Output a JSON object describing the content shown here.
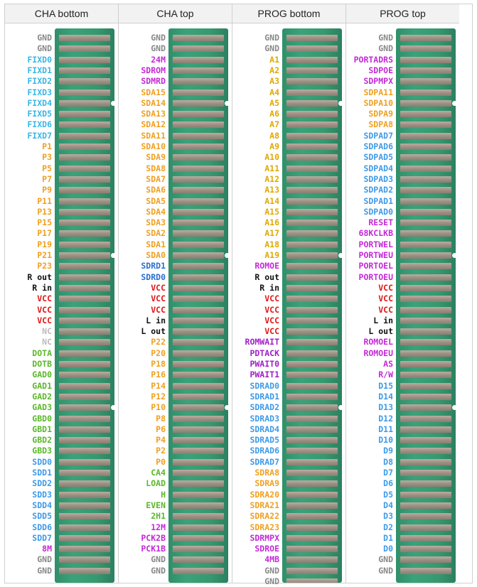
{
  "columns": [
    {
      "title": "CHA bottom",
      "pins": [
        {
          "name": "GND",
          "color": "#888888"
        },
        {
          "name": "GND",
          "color": "#888888"
        },
        {
          "name": "FIXD0",
          "color": "#39b6e6"
        },
        {
          "name": "FIXD1",
          "color": "#39b6e6"
        },
        {
          "name": "FIXD2",
          "color": "#39b6e6"
        },
        {
          "name": "FIXD3",
          "color": "#39b6e6"
        },
        {
          "name": "FIXD4",
          "color": "#39b6e6"
        },
        {
          "name": "FIXD5",
          "color": "#39b6e6"
        },
        {
          "name": "FIXD6",
          "color": "#39b6e6"
        },
        {
          "name": "FIXD7",
          "color": "#39b6e6"
        },
        {
          "name": "P1",
          "color": "#f0a020"
        },
        {
          "name": "P3",
          "color": "#f0a020"
        },
        {
          "name": "P5",
          "color": "#f0a020"
        },
        {
          "name": "P7",
          "color": "#f0a020"
        },
        {
          "name": "P9",
          "color": "#f0a020"
        },
        {
          "name": "P11",
          "color": "#f0a020"
        },
        {
          "name": "P13",
          "color": "#f0a020"
        },
        {
          "name": "P15",
          "color": "#f0a020"
        },
        {
          "name": "P17",
          "color": "#f0a020"
        },
        {
          "name": "P19",
          "color": "#f0a020"
        },
        {
          "name": "P21",
          "color": "#f0a020"
        },
        {
          "name": "P23",
          "color": "#f0a020"
        },
        {
          "name": "R out",
          "color": "#111111"
        },
        {
          "name": "R in",
          "color": "#111111"
        },
        {
          "name": "VCC",
          "color": "#e01818"
        },
        {
          "name": "VCC",
          "color": "#e01818"
        },
        {
          "name": "VCC",
          "color": "#e01818"
        },
        {
          "name": "NC",
          "color": "#bbbbbb"
        },
        {
          "name": "NC",
          "color": "#bbbbbb"
        },
        {
          "name": "DOTA",
          "color": "#5ab82a"
        },
        {
          "name": "DOTB",
          "color": "#5ab82a"
        },
        {
          "name": "GAD0",
          "color": "#5ab82a"
        },
        {
          "name": "GAD1",
          "color": "#5ab82a"
        },
        {
          "name": "GAD2",
          "color": "#5ab82a"
        },
        {
          "name": "GAD3",
          "color": "#5ab82a"
        },
        {
          "name": "GBD0",
          "color": "#5ab82a"
        },
        {
          "name": "GBD1",
          "color": "#5ab82a"
        },
        {
          "name": "GBD2",
          "color": "#5ab82a"
        },
        {
          "name": "GBD3",
          "color": "#5ab82a"
        },
        {
          "name": "SDD0",
          "color": "#3e9ae8"
        },
        {
          "name": "SDD1",
          "color": "#3e9ae8"
        },
        {
          "name": "SDD2",
          "color": "#3e9ae8"
        },
        {
          "name": "SDD3",
          "color": "#3e9ae8"
        },
        {
          "name": "SDD4",
          "color": "#3e9ae8"
        },
        {
          "name": "SDD5",
          "color": "#3e9ae8"
        },
        {
          "name": "SDD6",
          "color": "#3e9ae8"
        },
        {
          "name": "SDD7",
          "color": "#3e9ae8"
        },
        {
          "name": "8M",
          "color": "#c428d8"
        },
        {
          "name": "GND",
          "color": "#888888"
        },
        {
          "name": "GND",
          "color": "#888888"
        }
      ]
    },
    {
      "title": "CHA top",
      "pins": [
        {
          "name": "GND",
          "color": "#888888"
        },
        {
          "name": "GND",
          "color": "#888888"
        },
        {
          "name": "24M",
          "color": "#c428d8"
        },
        {
          "name": "SDROM",
          "color": "#c428d8"
        },
        {
          "name": "SDMRD",
          "color": "#c428d8"
        },
        {
          "name": "SDA15",
          "color": "#f0a020"
        },
        {
          "name": "SDA14",
          "color": "#f0a020"
        },
        {
          "name": "SDA13",
          "color": "#f0a020"
        },
        {
          "name": "SDA12",
          "color": "#f0a020"
        },
        {
          "name": "SDA11",
          "color": "#f0a020"
        },
        {
          "name": "SDA10",
          "color": "#f0a020"
        },
        {
          "name": "SDA9",
          "color": "#f0a020"
        },
        {
          "name": "SDA8",
          "color": "#f0a020"
        },
        {
          "name": "SDA7",
          "color": "#f0a020"
        },
        {
          "name": "SDA6",
          "color": "#f0a020"
        },
        {
          "name": "SDA5",
          "color": "#f0a020"
        },
        {
          "name": "SDA4",
          "color": "#f0a020"
        },
        {
          "name": "SDA3",
          "color": "#f0a020"
        },
        {
          "name": "SDA2",
          "color": "#f0a020"
        },
        {
          "name": "SDA1",
          "color": "#f0a020"
        },
        {
          "name": "SDA0",
          "color": "#f0a020"
        },
        {
          "name": "SDRD1",
          "color": "#2a6fd0"
        },
        {
          "name": "SDRD0",
          "color": "#2a6fd0"
        },
        {
          "name": "VCC",
          "color": "#e01818"
        },
        {
          "name": "VCC",
          "color": "#e01818"
        },
        {
          "name": "VCC",
          "color": "#e01818"
        },
        {
          "name": "L in",
          "color": "#111111"
        },
        {
          "name": "L out",
          "color": "#111111"
        },
        {
          "name": "P22",
          "color": "#f0a020"
        },
        {
          "name": "P20",
          "color": "#f0a020"
        },
        {
          "name": "P18",
          "color": "#f0a020"
        },
        {
          "name": "P16",
          "color": "#f0a020"
        },
        {
          "name": "P14",
          "color": "#f0a020"
        },
        {
          "name": "P12",
          "color": "#f0a020"
        },
        {
          "name": "P10",
          "color": "#f0a020"
        },
        {
          "name": "P8",
          "color": "#f0a020"
        },
        {
          "name": "P6",
          "color": "#f0a020"
        },
        {
          "name": "P4",
          "color": "#f0a020"
        },
        {
          "name": "P2",
          "color": "#f0a020"
        },
        {
          "name": "P0",
          "color": "#f0a020"
        },
        {
          "name": "CA4",
          "color": "#5ab82a"
        },
        {
          "name": "LOAD",
          "color": "#5ab82a"
        },
        {
          "name": "H",
          "color": "#5ab82a"
        },
        {
          "name": "EVEN",
          "color": "#5ab82a"
        },
        {
          "name": "2H1",
          "color": "#5ab82a"
        },
        {
          "name": "12M",
          "color": "#c428d8"
        },
        {
          "name": "PCK2B",
          "color": "#c428d8"
        },
        {
          "name": "PCK1B",
          "color": "#c428d8"
        },
        {
          "name": "GND",
          "color": "#888888"
        },
        {
          "name": "GND",
          "color": "#888888"
        }
      ]
    },
    {
      "title": "PROG bottom",
      "pins": [
        {
          "name": "GND",
          "color": "#888888"
        },
        {
          "name": "GND",
          "color": "#888888"
        },
        {
          "name": "A1",
          "color": "#e0a800"
        },
        {
          "name": "A2",
          "color": "#e0a800"
        },
        {
          "name": "A3",
          "color": "#e0a800"
        },
        {
          "name": "A4",
          "color": "#e0a800"
        },
        {
          "name": "A5",
          "color": "#e0a800"
        },
        {
          "name": "A6",
          "color": "#e0a800"
        },
        {
          "name": "A7",
          "color": "#e0a800"
        },
        {
          "name": "A8",
          "color": "#e0a800"
        },
        {
          "name": "A9",
          "color": "#e0a800"
        },
        {
          "name": "A10",
          "color": "#e0a800"
        },
        {
          "name": "A11",
          "color": "#e0a800"
        },
        {
          "name": "A12",
          "color": "#e0a800"
        },
        {
          "name": "A13",
          "color": "#e0a800"
        },
        {
          "name": "A14",
          "color": "#e0a800"
        },
        {
          "name": "A15",
          "color": "#e0a800"
        },
        {
          "name": "A16",
          "color": "#e0a800"
        },
        {
          "name": "A17",
          "color": "#e0a800"
        },
        {
          "name": "A18",
          "color": "#e0a800"
        },
        {
          "name": "A19",
          "color": "#e0a800"
        },
        {
          "name": "ROMOE",
          "color": "#c428d8"
        },
        {
          "name": "R out",
          "color": "#111111"
        },
        {
          "name": "R in",
          "color": "#111111"
        },
        {
          "name": "VCC",
          "color": "#e01818"
        },
        {
          "name": "VCC",
          "color": "#e01818"
        },
        {
          "name": "VCC",
          "color": "#e01818"
        },
        {
          "name": "VCC",
          "color": "#e01818"
        },
        {
          "name": "ROMWAIT",
          "color": "#a01ec8"
        },
        {
          "name": "PDTACK",
          "color": "#a01ec8"
        },
        {
          "name": "PWAIT0",
          "color": "#a01ec8"
        },
        {
          "name": "PWAIT1",
          "color": "#a01ec8"
        },
        {
          "name": "SDRAD0",
          "color": "#3e9ae8"
        },
        {
          "name": "SDRAD1",
          "color": "#3e9ae8"
        },
        {
          "name": "SDRAD2",
          "color": "#3e9ae8"
        },
        {
          "name": "SDRAD3",
          "color": "#3e9ae8"
        },
        {
          "name": "SDRAD4",
          "color": "#3e9ae8"
        },
        {
          "name": "SDRAD5",
          "color": "#3e9ae8"
        },
        {
          "name": "SDRAD6",
          "color": "#3e9ae8"
        },
        {
          "name": "SDRAD7",
          "color": "#3e9ae8"
        },
        {
          "name": "SDRA8",
          "color": "#f0a020"
        },
        {
          "name": "SDRA9",
          "color": "#f0a020"
        },
        {
          "name": "SDRA20",
          "color": "#f0a020"
        },
        {
          "name": "SDRA21",
          "color": "#f0a020"
        },
        {
          "name": "SDRA22",
          "color": "#f0a020"
        },
        {
          "name": "SDRA23",
          "color": "#f0a020"
        },
        {
          "name": "SDRMPX",
          "color": "#c428d8"
        },
        {
          "name": "SDROE",
          "color": "#c428d8"
        },
        {
          "name": "4MB",
          "color": "#c428d8"
        },
        {
          "name": "GND",
          "color": "#888888"
        },
        {
          "name": "GND",
          "color": "#888888"
        }
      ]
    },
    {
      "title": "PROG top",
      "pins": [
        {
          "name": "GND",
          "color": "#888888"
        },
        {
          "name": "GND",
          "color": "#888888"
        },
        {
          "name": "PORTADRS",
          "color": "#c428d8"
        },
        {
          "name": "SDPOE",
          "color": "#c428d8"
        },
        {
          "name": "SDPMPX",
          "color": "#c428d8"
        },
        {
          "name": "SDPA11",
          "color": "#f0a020"
        },
        {
          "name": "SDPA10",
          "color": "#f0a020"
        },
        {
          "name": "SDPA9",
          "color": "#f0a020"
        },
        {
          "name": "SDPA8",
          "color": "#f0a020"
        },
        {
          "name": "SDPAD7",
          "color": "#3e9ae8"
        },
        {
          "name": "SDPAD6",
          "color": "#3e9ae8"
        },
        {
          "name": "SDPAD5",
          "color": "#3e9ae8"
        },
        {
          "name": "SDPAD4",
          "color": "#3e9ae8"
        },
        {
          "name": "SDPAD3",
          "color": "#3e9ae8"
        },
        {
          "name": "SDPAD2",
          "color": "#3e9ae8"
        },
        {
          "name": "SDPAD1",
          "color": "#3e9ae8"
        },
        {
          "name": "SDPAD0",
          "color": "#3e9ae8"
        },
        {
          "name": "RESET",
          "color": "#c428d8"
        },
        {
          "name": "68KCLKB",
          "color": "#c428d8"
        },
        {
          "name": "PORTWEL",
          "color": "#c428d8"
        },
        {
          "name": "PORTWEU",
          "color": "#c428d8"
        },
        {
          "name": "PORTOEL",
          "color": "#c428d8"
        },
        {
          "name": "PORTOEU",
          "color": "#c428d8"
        },
        {
          "name": "VCC",
          "color": "#e01818"
        },
        {
          "name": "VCC",
          "color": "#e01818"
        },
        {
          "name": "VCC",
          "color": "#e01818"
        },
        {
          "name": "L in",
          "color": "#111111"
        },
        {
          "name": "L out",
          "color": "#111111"
        },
        {
          "name": "ROMOEL",
          "color": "#c428d8"
        },
        {
          "name": "ROMOEU",
          "color": "#c428d8"
        },
        {
          "name": "AS",
          "color": "#c428d8"
        },
        {
          "name": "R/W",
          "color": "#c428d8"
        },
        {
          "name": "D15",
          "color": "#3e9ae8"
        },
        {
          "name": "D14",
          "color": "#3e9ae8"
        },
        {
          "name": "D13",
          "color": "#3e9ae8"
        },
        {
          "name": "D12",
          "color": "#3e9ae8"
        },
        {
          "name": "D11",
          "color": "#3e9ae8"
        },
        {
          "name": "D10",
          "color": "#3e9ae8"
        },
        {
          "name": "D9",
          "color": "#3e9ae8"
        },
        {
          "name": "D8",
          "color": "#3e9ae8"
        },
        {
          "name": "D7",
          "color": "#3e9ae8"
        },
        {
          "name": "D6",
          "color": "#3e9ae8"
        },
        {
          "name": "D5",
          "color": "#3e9ae8"
        },
        {
          "name": "D4",
          "color": "#3e9ae8"
        },
        {
          "name": "D3",
          "color": "#3e9ae8"
        },
        {
          "name": "D2",
          "color": "#3e9ae8"
        },
        {
          "name": "D1",
          "color": "#3e9ae8"
        },
        {
          "name": "D0",
          "color": "#3e9ae8"
        },
        {
          "name": "GND",
          "color": "#888888"
        },
        {
          "name": "GND",
          "color": "#888888"
        }
      ]
    }
  ]
}
